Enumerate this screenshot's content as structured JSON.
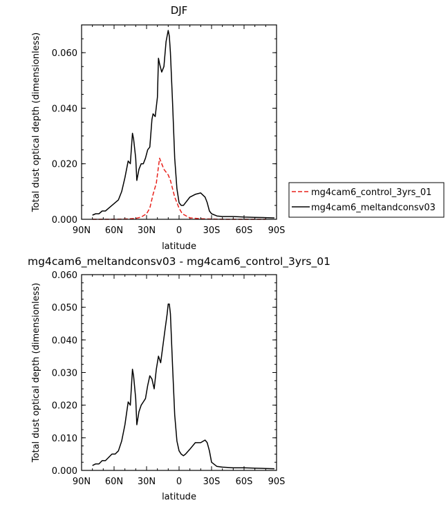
{
  "chart_data": [
    {
      "type": "line",
      "title": "DJF",
      "xlabel": "latitude",
      "ylabel": "Total dust optical depth (dimensionless)",
      "xlim": [
        90,
        -90
      ],
      "ylim": [
        0,
        0.07
      ],
      "x_tick_values": [
        90,
        60,
        30,
        0,
        -30,
        -60,
        -90
      ],
      "x_tick_labels": [
        "90N",
        "60N",
        "30N",
        "0",
        "30S",
        "60S",
        "90S"
      ],
      "y_tick_values": [
        0,
        0.02,
        0.04,
        0.06
      ],
      "y_tick_labels": [
        "0.000",
        "0.020",
        "0.040",
        "0.060"
      ],
      "legend_position": "right",
      "series": [
        {
          "name": "mg4cam6_control_3yrs_01",
          "color": "#e8201a",
          "style": "dashed",
          "x": [
            80,
            70,
            60,
            50,
            40,
            35,
            30,
            27,
            24,
            21,
            18,
            16,
            14,
            12,
            10,
            8,
            6,
            4,
            2,
            0,
            -3,
            -10,
            -20,
            -30,
            -40,
            -60,
            -80
          ],
          "y": [
            0.0,
            0.0,
            0.0,
            0.0001,
            0.0003,
            0.0008,
            0.002,
            0.004,
            0.009,
            0.013,
            0.022,
            0.02,
            0.018,
            0.017,
            0.016,
            0.014,
            0.011,
            0.008,
            0.006,
            0.004,
            0.002,
            0.0005,
            0.0002,
            0.0001,
            0.0,
            0.0,
            0.0
          ]
        },
        {
          "name": "mg4cam6_meltandconsv03",
          "color": "#000000",
          "style": "solid",
          "x": [
            80,
            77,
            74,
            71,
            68,
            65,
            62,
            59,
            56,
            53,
            50,
            47,
            45,
            43,
            42,
            40,
            39,
            37,
            35,
            33,
            31,
            29,
            27,
            25,
            24,
            22,
            20,
            19,
            18,
            16,
            14,
            12,
            10,
            9,
            8,
            6,
            4,
            2,
            0,
            -2,
            -4,
            -6,
            -10,
            -15,
            -20,
            -24,
            -26,
            -28,
            -30,
            -35,
            -40,
            -50,
            -60,
            -70,
            -80,
            -88
          ],
          "y": [
            0.0015,
            0.002,
            0.002,
            0.003,
            0.003,
            0.004,
            0.005,
            0.006,
            0.007,
            0.01,
            0.015,
            0.021,
            0.02,
            0.031,
            0.029,
            0.022,
            0.014,
            0.018,
            0.02,
            0.02,
            0.022,
            0.025,
            0.026,
            0.036,
            0.038,
            0.037,
            0.044,
            0.058,
            0.056,
            0.053,
            0.055,
            0.064,
            0.068,
            0.066,
            0.06,
            0.042,
            0.022,
            0.011,
            0.006,
            0.005,
            0.005,
            0.006,
            0.008,
            0.009,
            0.0095,
            0.008,
            0.006,
            0.003,
            0.002,
            0.0012,
            0.001,
            0.001,
            0.0008,
            0.0007,
            0.0006,
            0.0005
          ]
        }
      ]
    },
    {
      "type": "line",
      "title": "mg4cam6_meltandconsv03 - mg4cam6_control_3yrs_01",
      "xlabel": "latitude",
      "ylabel": "Total dust optical depth (dimensionless)",
      "xlim": [
        90,
        -90
      ],
      "ylim": [
        0,
        0.06
      ],
      "x_tick_values": [
        90,
        60,
        30,
        0,
        -30,
        -60,
        -90
      ],
      "x_tick_labels": [
        "90N",
        "60N",
        "30N",
        "0",
        "30S",
        "60S",
        "90S"
      ],
      "y_tick_values": [
        0,
        0.01,
        0.02,
        0.03,
        0.04,
        0.05,
        0.06
      ],
      "y_tick_labels": [
        "0.000",
        "0.010",
        "0.020",
        "0.030",
        "0.040",
        "0.050",
        "0.060"
      ],
      "series": [
        {
          "color": "#000000",
          "style": "solid",
          "x": [
            80,
            77,
            74,
            71,
            68,
            65,
            62,
            59,
            56,
            53,
            50,
            47,
            45,
            43,
            42,
            40,
            39,
            37,
            35,
            33,
            31,
            29,
            27,
            25,
            23,
            21,
            19,
            17,
            15,
            13,
            11,
            10,
            9,
            8,
            6,
            4,
            2,
            0,
            -2,
            -4,
            -6,
            -10,
            -15,
            -20,
            -24,
            -26,
            -28,
            -30,
            -35,
            -40,
            -50,
            -60,
            -70,
            -80,
            -88
          ],
          "y": [
            0.0015,
            0.002,
            0.002,
            0.003,
            0.003,
            0.004,
            0.005,
            0.005,
            0.006,
            0.009,
            0.014,
            0.021,
            0.02,
            0.031,
            0.029,
            0.022,
            0.014,
            0.018,
            0.02,
            0.021,
            0.022,
            0.026,
            0.029,
            0.028,
            0.025,
            0.031,
            0.035,
            0.033,
            0.038,
            0.043,
            0.048,
            0.051,
            0.051,
            0.048,
            0.032,
            0.017,
            0.009,
            0.006,
            0.005,
            0.0045,
            0.005,
            0.0065,
            0.0085,
            0.0085,
            0.0093,
            0.0085,
            0.006,
            0.0025,
            0.0012,
            0.001,
            0.0008,
            0.0008,
            0.0007,
            0.0006,
            0.0005
          ]
        }
      ]
    }
  ]
}
